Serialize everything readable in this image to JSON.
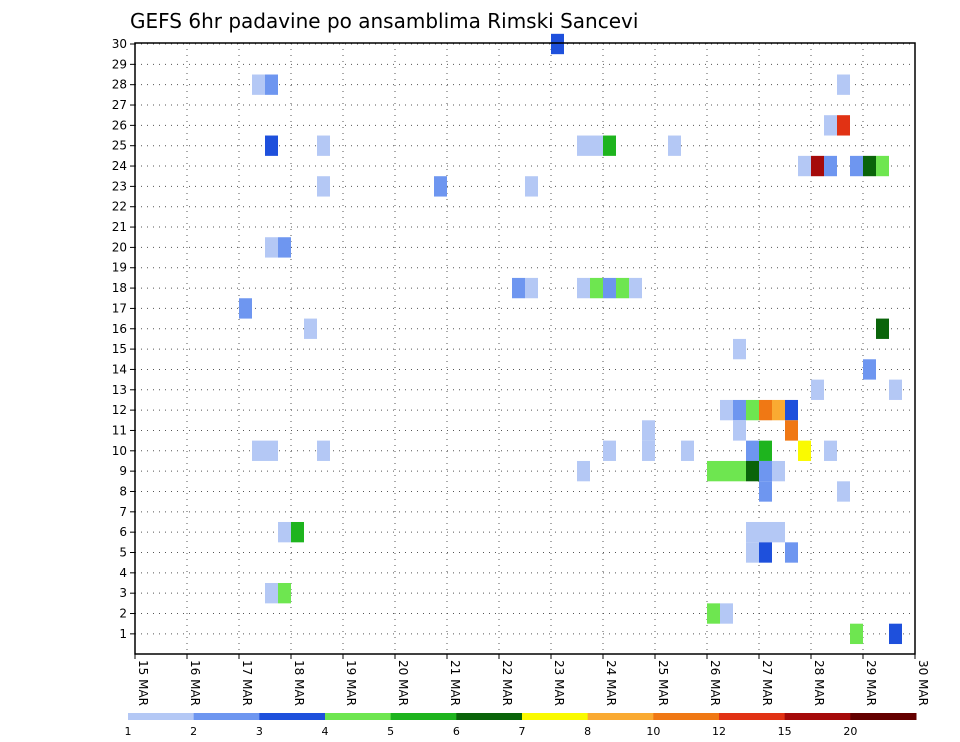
{
  "chart_data": {
    "type": "heatmap",
    "title": "GEFS 6hr padavine po ansamblima Rimski Sancevi",
    "xlabel": "",
    "ylabel": "",
    "x_ticks": [
      "15 MAR",
      "16 MAR",
      "17 MAR",
      "18 MAR",
      "19 MAR",
      "20 MAR",
      "21 MAR",
      "22 MAR",
      "23 MAR",
      "24 MAR",
      "25 MAR",
      "26 MAR",
      "27 MAR",
      "28 MAR",
      "29 MAR",
      "30 MAR"
    ],
    "x_range_days": [
      15,
      30
    ],
    "y_ticks": [
      "1",
      "2",
      "3",
      "4",
      "5",
      "6",
      "7",
      "8",
      "9",
      "10",
      "11",
      "12",
      "13",
      "14",
      "15",
      "16",
      "17",
      "18",
      "19",
      "20",
      "21",
      "22",
      "23",
      "24",
      "25",
      "26",
      "27",
      "28",
      "29",
      "30"
    ],
    "y_range": [
      1,
      30
    ],
    "grid": true,
    "colorbar": {
      "colors": [
        "#b4c8f5",
        "#6e96f0",
        "#1e50dc",
        "#6ee650",
        "#1eb41e",
        "#0a640a",
        "#fafa00",
        "#faaa32",
        "#f07814",
        "#e13214",
        "#a50a0a",
        "#640000"
      ],
      "labels": [
        "1",
        "2",
        "3",
        "4",
        "5",
        "6",
        "7",
        "8",
        "10",
        "12",
        "15",
        "20"
      ]
    },
    "cells": [
      {
        "m": 30,
        "d": 23.125,
        "c": 2
      },
      {
        "m": 28,
        "d": 17.375,
        "c": 0
      },
      {
        "m": 28,
        "d": 17.625,
        "c": 1
      },
      {
        "m": 28,
        "d": 28.625,
        "c": 0
      },
      {
        "m": 26,
        "d": 28.375,
        "c": 0
      },
      {
        "m": 26,
        "d": 28.625,
        "c": 9
      },
      {
        "m": 25,
        "d": 17.625,
        "c": 2
      },
      {
        "m": 25,
        "d": 18.625,
        "c": 0
      },
      {
        "m": 25,
        "d": 23.625,
        "c": 0
      },
      {
        "m": 25,
        "d": 23.875,
        "c": 0
      },
      {
        "m": 25,
        "d": 24.125,
        "c": 4
      },
      {
        "m": 25,
        "d": 25.375,
        "c": 0
      },
      {
        "m": 24,
        "d": 27.875,
        "c": 0
      },
      {
        "m": 24,
        "d": 28.125,
        "c": 10
      },
      {
        "m": 24,
        "d": 28.375,
        "c": 1
      },
      {
        "m": 24,
        "d": 28.875,
        "c": 1
      },
      {
        "m": 24,
        "d": 29.125,
        "c": 5
      },
      {
        "m": 24,
        "d": 29.375,
        "c": 3
      },
      {
        "m": 23,
        "d": 18.625,
        "c": 0
      },
      {
        "m": 23,
        "d": 20.875,
        "c": 1
      },
      {
        "m": 23,
        "d": 22.625,
        "c": 0
      },
      {
        "m": 20,
        "d": 17.625,
        "c": 0
      },
      {
        "m": 20,
        "d": 17.875,
        "c": 1
      },
      {
        "m": 18,
        "d": 22.375,
        "c": 1
      },
      {
        "m": 18,
        "d": 22.625,
        "c": 0
      },
      {
        "m": 18,
        "d": 23.625,
        "c": 0
      },
      {
        "m": 18,
        "d": 23.875,
        "c": 3
      },
      {
        "m": 18,
        "d": 24.125,
        "c": 1
      },
      {
        "m": 18,
        "d": 24.375,
        "c": 3
      },
      {
        "m": 18,
        "d": 24.625,
        "c": 0
      },
      {
        "m": 17,
        "d": 17.125,
        "c": 1
      },
      {
        "m": 16,
        "d": 18.375,
        "c": 0
      },
      {
        "m": 16,
        "d": 29.375,
        "c": 5
      },
      {
        "m": 15,
        "d": 26.625,
        "c": 0
      },
      {
        "m": 14,
        "d": 29.125,
        "c": 1
      },
      {
        "m": 13,
        "d": 28.125,
        "c": 0
      },
      {
        "m": 13,
        "d": 29.625,
        "c": 0
      },
      {
        "m": 12,
        "d": 26.375,
        "c": 0
      },
      {
        "m": 12,
        "d": 26.625,
        "c": 1
      },
      {
        "m": 12,
        "d": 26.875,
        "c": 3
      },
      {
        "m": 12,
        "d": 27.125,
        "c": 8
      },
      {
        "m": 12,
        "d": 27.375,
        "c": 7
      },
      {
        "m": 12,
        "d": 27.625,
        "c": 2
      },
      {
        "m": 11,
        "d": 24.875,
        "c": 0
      },
      {
        "m": 11,
        "d": 26.625,
        "c": 0
      },
      {
        "m": 11,
        "d": 27.625,
        "c": 8
      },
      {
        "m": 10,
        "d": 17.375,
        "c": 0
      },
      {
        "m": 10,
        "d": 17.625,
        "c": 0
      },
      {
        "m": 10,
        "d": 18.625,
        "c": 0
      },
      {
        "m": 10,
        "d": 24.125,
        "c": 0
      },
      {
        "m": 10,
        "d": 24.875,
        "c": 0
      },
      {
        "m": 10,
        "d": 25.625,
        "c": 0
      },
      {
        "m": 10,
        "d": 26.875,
        "c": 1
      },
      {
        "m": 10,
        "d": 27.125,
        "c": 4
      },
      {
        "m": 10,
        "d": 27.875,
        "c": 6
      },
      {
        "m": 10,
        "d": 28.375,
        "c": 0
      },
      {
        "m": 9,
        "d": 23.625,
        "c": 0
      },
      {
        "m": 9,
        "d": 26.125,
        "c": 3
      },
      {
        "m": 9,
        "d": 26.375,
        "c": 3
      },
      {
        "m": 9,
        "d": 26.625,
        "c": 3
      },
      {
        "m": 9,
        "d": 26.875,
        "c": 5
      },
      {
        "m": 9,
        "d": 27.125,
        "c": 1
      },
      {
        "m": 9,
        "d": 27.375,
        "c": 0
      },
      {
        "m": 8,
        "d": 27.125,
        "c": 1
      },
      {
        "m": 8,
        "d": 28.625,
        "c": 0
      },
      {
        "m": 6,
        "d": 17.875,
        "c": 0
      },
      {
        "m": 6,
        "d": 18.125,
        "c": 4
      },
      {
        "m": 6,
        "d": 26.875,
        "c": 0
      },
      {
        "m": 6,
        "d": 27.125,
        "c": 0
      },
      {
        "m": 6,
        "d": 27.375,
        "c": 0
      },
      {
        "m": 5,
        "d": 26.875,
        "c": 0
      },
      {
        "m": 5,
        "d": 27.125,
        "c": 2
      },
      {
        "m": 5,
        "d": 27.625,
        "c": 1
      },
      {
        "m": 3,
        "d": 17.625,
        "c": 0
      },
      {
        "m": 3,
        "d": 17.875,
        "c": 3
      },
      {
        "m": 2,
        "d": 26.125,
        "c": 3
      },
      {
        "m": 2,
        "d": 26.375,
        "c": 0
      },
      {
        "m": 1,
        "d": 28.875,
        "c": 3
      },
      {
        "m": 1,
        "d": 29.625,
        "c": 2
      }
    ]
  }
}
